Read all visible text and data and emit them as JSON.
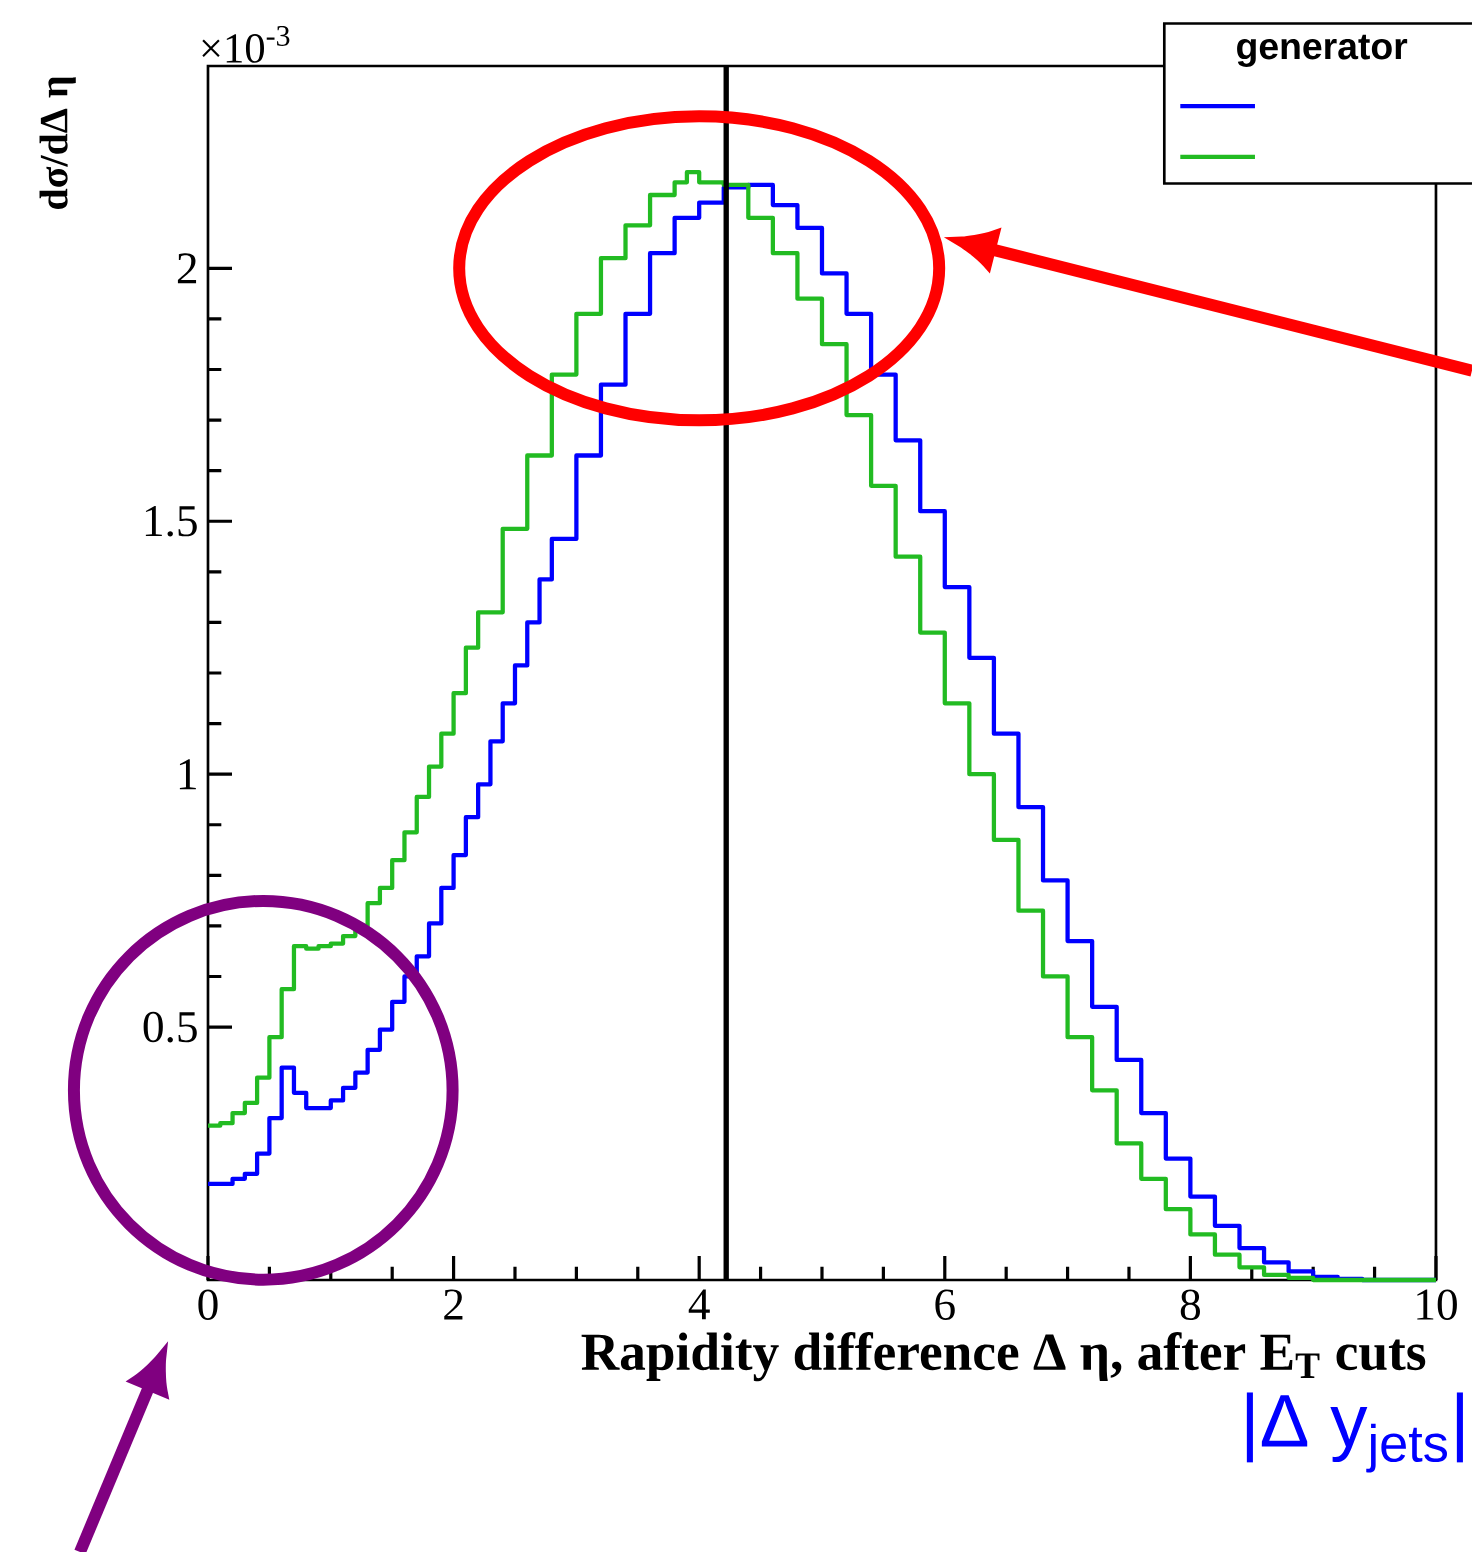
{
  "chart_data": {
    "type": "step",
    "xlabel": "Rapidity difference Δ η, after E$_{T}$ cuts",
    "ylabel": "dσ/dΔ η",
    "legend_title": "generator",
    "annotations": [
      "×10$^{-3}$",
      "|Δ y$_{jets}$|"
    ],
    "xlim": [
      0,
      10
    ],
    "ylim": [
      0,
      2.4
    ],
    "xticks": [
      0,
      2,
      4,
      6,
      8,
      10
    ],
    "yticks": [
      0.5,
      1,
      1.5,
      2
    ],
    "ref_lines": [
      {
        "axis": "x",
        "value": 4.22,
        "color": "#000000"
      }
    ],
    "series": [
      {
        "color": "#0000ff",
        "x": [
          0,
          0.1,
          0.2,
          0.3,
          0.4,
          0.5,
          0.6,
          0.7,
          0.8,
          0.9,
          1.0,
          1.1,
          1.2,
          1.3,
          1.4,
          1.5,
          1.6,
          1.7,
          1.8,
          1.9,
          2.0,
          2.1,
          2.2,
          2.3,
          2.4,
          2.5,
          2.6,
          2.7,
          2.8,
          3.0,
          3.2,
          3.4,
          3.6,
          3.8,
          4.0,
          4.2,
          4.4,
          4.6,
          4.8,
          5.0,
          5.2,
          5.4,
          5.6,
          5.8,
          6.0,
          6.2,
          6.4,
          6.6,
          6.8,
          7.0,
          7.2,
          7.4,
          7.6,
          7.8,
          8.0,
          8.2,
          8.4,
          8.6,
          8.8,
          9.0,
          9.2,
          9.4,
          10
        ],
        "values": [
          0.19,
          0.19,
          0.2,
          0.21,
          0.25,
          0.32,
          0.42,
          0.37,
          0.34,
          0.34,
          0.355,
          0.38,
          0.41,
          0.455,
          0.495,
          0.55,
          0.6,
          0.64,
          0.705,
          0.775,
          0.84,
          0.915,
          0.98,
          1.065,
          1.14,
          1.215,
          1.3,
          1.385,
          1.465,
          1.63,
          1.77,
          1.91,
          2.03,
          2.1,
          2.13,
          2.16,
          2.165,
          2.125,
          2.08,
          1.99,
          1.91,
          1.79,
          1.66,
          1.52,
          1.37,
          1.23,
          1.08,
          0.935,
          0.79,
          0.67,
          0.54,
          0.435,
          0.33,
          0.24,
          0.165,
          0.107,
          0.063,
          0.035,
          0.017,
          0.006,
          0.002,
          0,
          0
        ]
      },
      {
        "color": "#22bb22",
        "x": [
          0,
          0.1,
          0.2,
          0.3,
          0.4,
          0.5,
          0.6,
          0.7,
          0.8,
          0.9,
          1.0,
          1.1,
          1.2,
          1.3,
          1.4,
          1.5,
          1.6,
          1.7,
          1.8,
          1.9,
          2.0,
          2.1,
          2.2,
          2.4,
          2.6,
          2.8,
          3.0,
          3.2,
          3.4,
          3.6,
          3.8,
          3.9,
          4.0,
          4.2,
          4.4,
          4.6,
          4.8,
          5.0,
          5.2,
          5.4,
          5.6,
          5.8,
          6.0,
          6.2,
          6.4,
          6.6,
          6.8,
          7.0,
          7.2,
          7.4,
          7.6,
          7.8,
          8.0,
          8.2,
          8.4,
          8.6,
          8.8,
          9.0,
          10
        ],
        "values": [
          0.305,
          0.31,
          0.33,
          0.35,
          0.4,
          0.48,
          0.575,
          0.66,
          0.655,
          0.66,
          0.665,
          0.68,
          0.7,
          0.745,
          0.775,
          0.83,
          0.885,
          0.955,
          1.015,
          1.08,
          1.16,
          1.25,
          1.32,
          1.485,
          1.63,
          1.79,
          1.91,
          2.02,
          2.085,
          2.145,
          2.17,
          2.19,
          2.17,
          2.165,
          2.1,
          2.03,
          1.94,
          1.85,
          1.71,
          1.57,
          1.43,
          1.28,
          1.14,
          1.0,
          0.87,
          0.73,
          0.6,
          0.48,
          0.375,
          0.27,
          0.2,
          0.14,
          0.09,
          0.05,
          0.025,
          0.01,
          0.004,
          0,
          0
        ]
      }
    ]
  }
}
